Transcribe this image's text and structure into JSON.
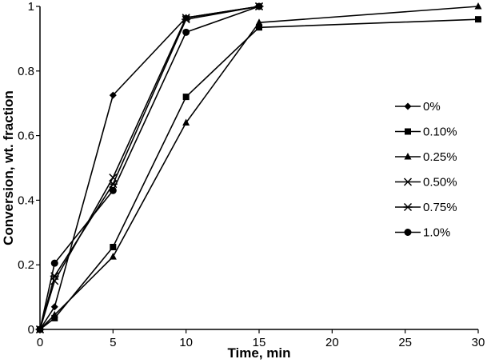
{
  "chart_data": {
    "type": "line",
    "title": "",
    "xlabel": "Time, min",
    "ylabel": "Conversion, wt. fraction",
    "xlim": [
      0,
      30
    ],
    "ylim": [
      0,
      1
    ],
    "xticks": [
      0,
      5,
      10,
      15,
      20,
      25,
      30
    ],
    "yticks": [
      0,
      0.2,
      0.4,
      0.6,
      0.8,
      1
    ],
    "ytick_labels": [
      "0",
      "0.2",
      "0.4",
      "0.6",
      "0.8",
      "1"
    ],
    "grid": false,
    "legend_position": "right-middle",
    "series": [
      {
        "name": "0%",
        "marker": "diamond",
        "x": [
          0,
          1,
          5,
          10,
          15
        ],
        "y": [
          0,
          0.07,
          0.725,
          0.965,
          1.0
        ]
      },
      {
        "name": "0.10%",
        "marker": "square",
        "x": [
          0,
          1,
          5,
          10,
          15,
          30
        ],
        "y": [
          0,
          0.035,
          0.255,
          0.72,
          0.935,
          0.96
        ]
      },
      {
        "name": "0.25%",
        "marker": "triangle",
        "x": [
          0,
          1,
          5,
          10,
          15,
          30
        ],
        "y": [
          0,
          0.045,
          0.225,
          0.64,
          0.95,
          1.0
        ]
      },
      {
        "name": "0.50%",
        "marker": "x",
        "x": [
          0,
          1,
          5,
          10,
          15
        ],
        "y": [
          0,
          0.15,
          0.47,
          0.965,
          1.0
        ]
      },
      {
        "name": "0.75%",
        "marker": "star",
        "x": [
          0,
          1,
          5,
          10,
          15
        ],
        "y": [
          0,
          0.165,
          0.45,
          0.96,
          1.0
        ]
      },
      {
        "name": "1.0%",
        "marker": "circle",
        "x": [
          0,
          1,
          5,
          10,
          15
        ],
        "y": [
          0,
          0.205,
          0.43,
          0.92,
          1.0
        ]
      }
    ]
  }
}
